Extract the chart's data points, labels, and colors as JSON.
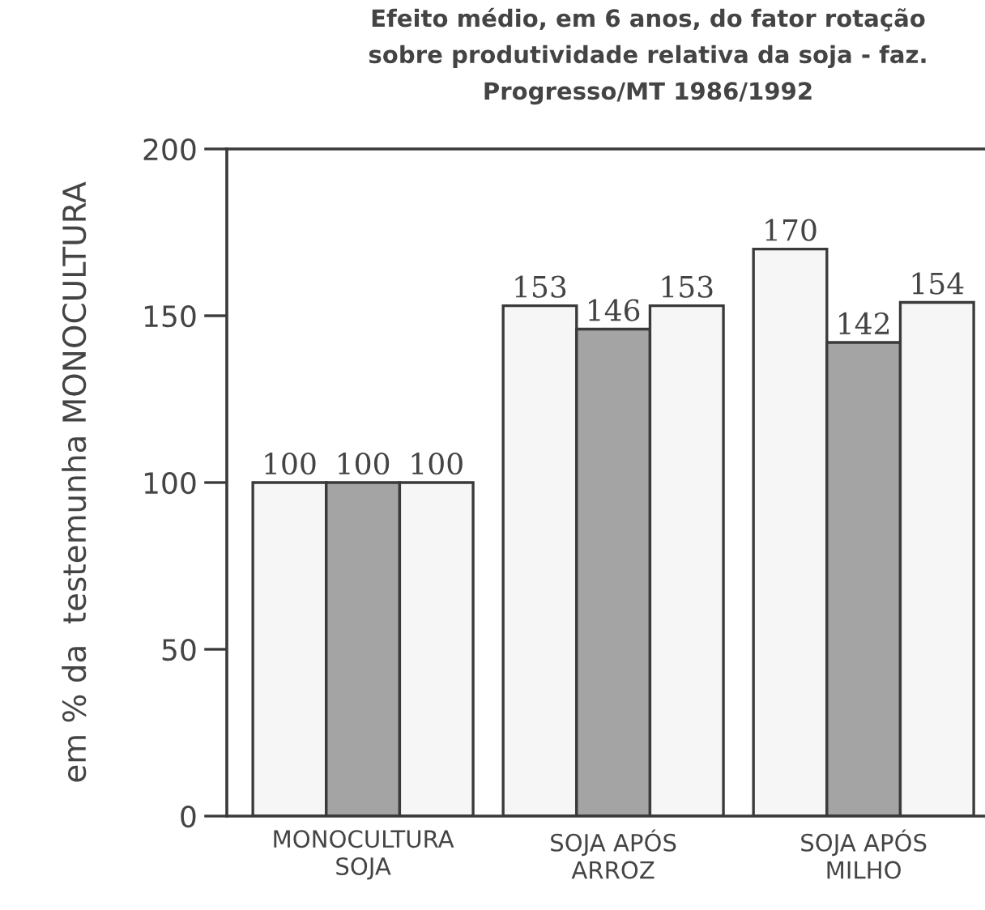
{
  "chart_data": {
    "type": "bar",
    "title": "Efeito médio, em 6 anos, do fator rotação\nsobre produtividade relativa da soja - faz.\nProgresso/MT 1986/1992",
    "ylabel": "em % da  testemunha MONOCULTURA",
    "categories": [
      "MONOCULTURA\nSOJA",
      "SOJA APÓS\nARROZ",
      "SOJA APÓS\nMILHO"
    ],
    "series": [
      {
        "color": "#f6f6f6",
        "values": [
          100,
          153,
          170
        ]
      },
      {
        "color": "#a4a4a4",
        "values": [
          100,
          146,
          142
        ]
      },
      {
        "color": "#f6f6f6",
        "values": [
          100,
          153,
          154
        ]
      }
    ],
    "ylim": [
      0,
      200
    ],
    "yticks": [
      0,
      50,
      100,
      150,
      200
    ],
    "data_labels": true
  }
}
